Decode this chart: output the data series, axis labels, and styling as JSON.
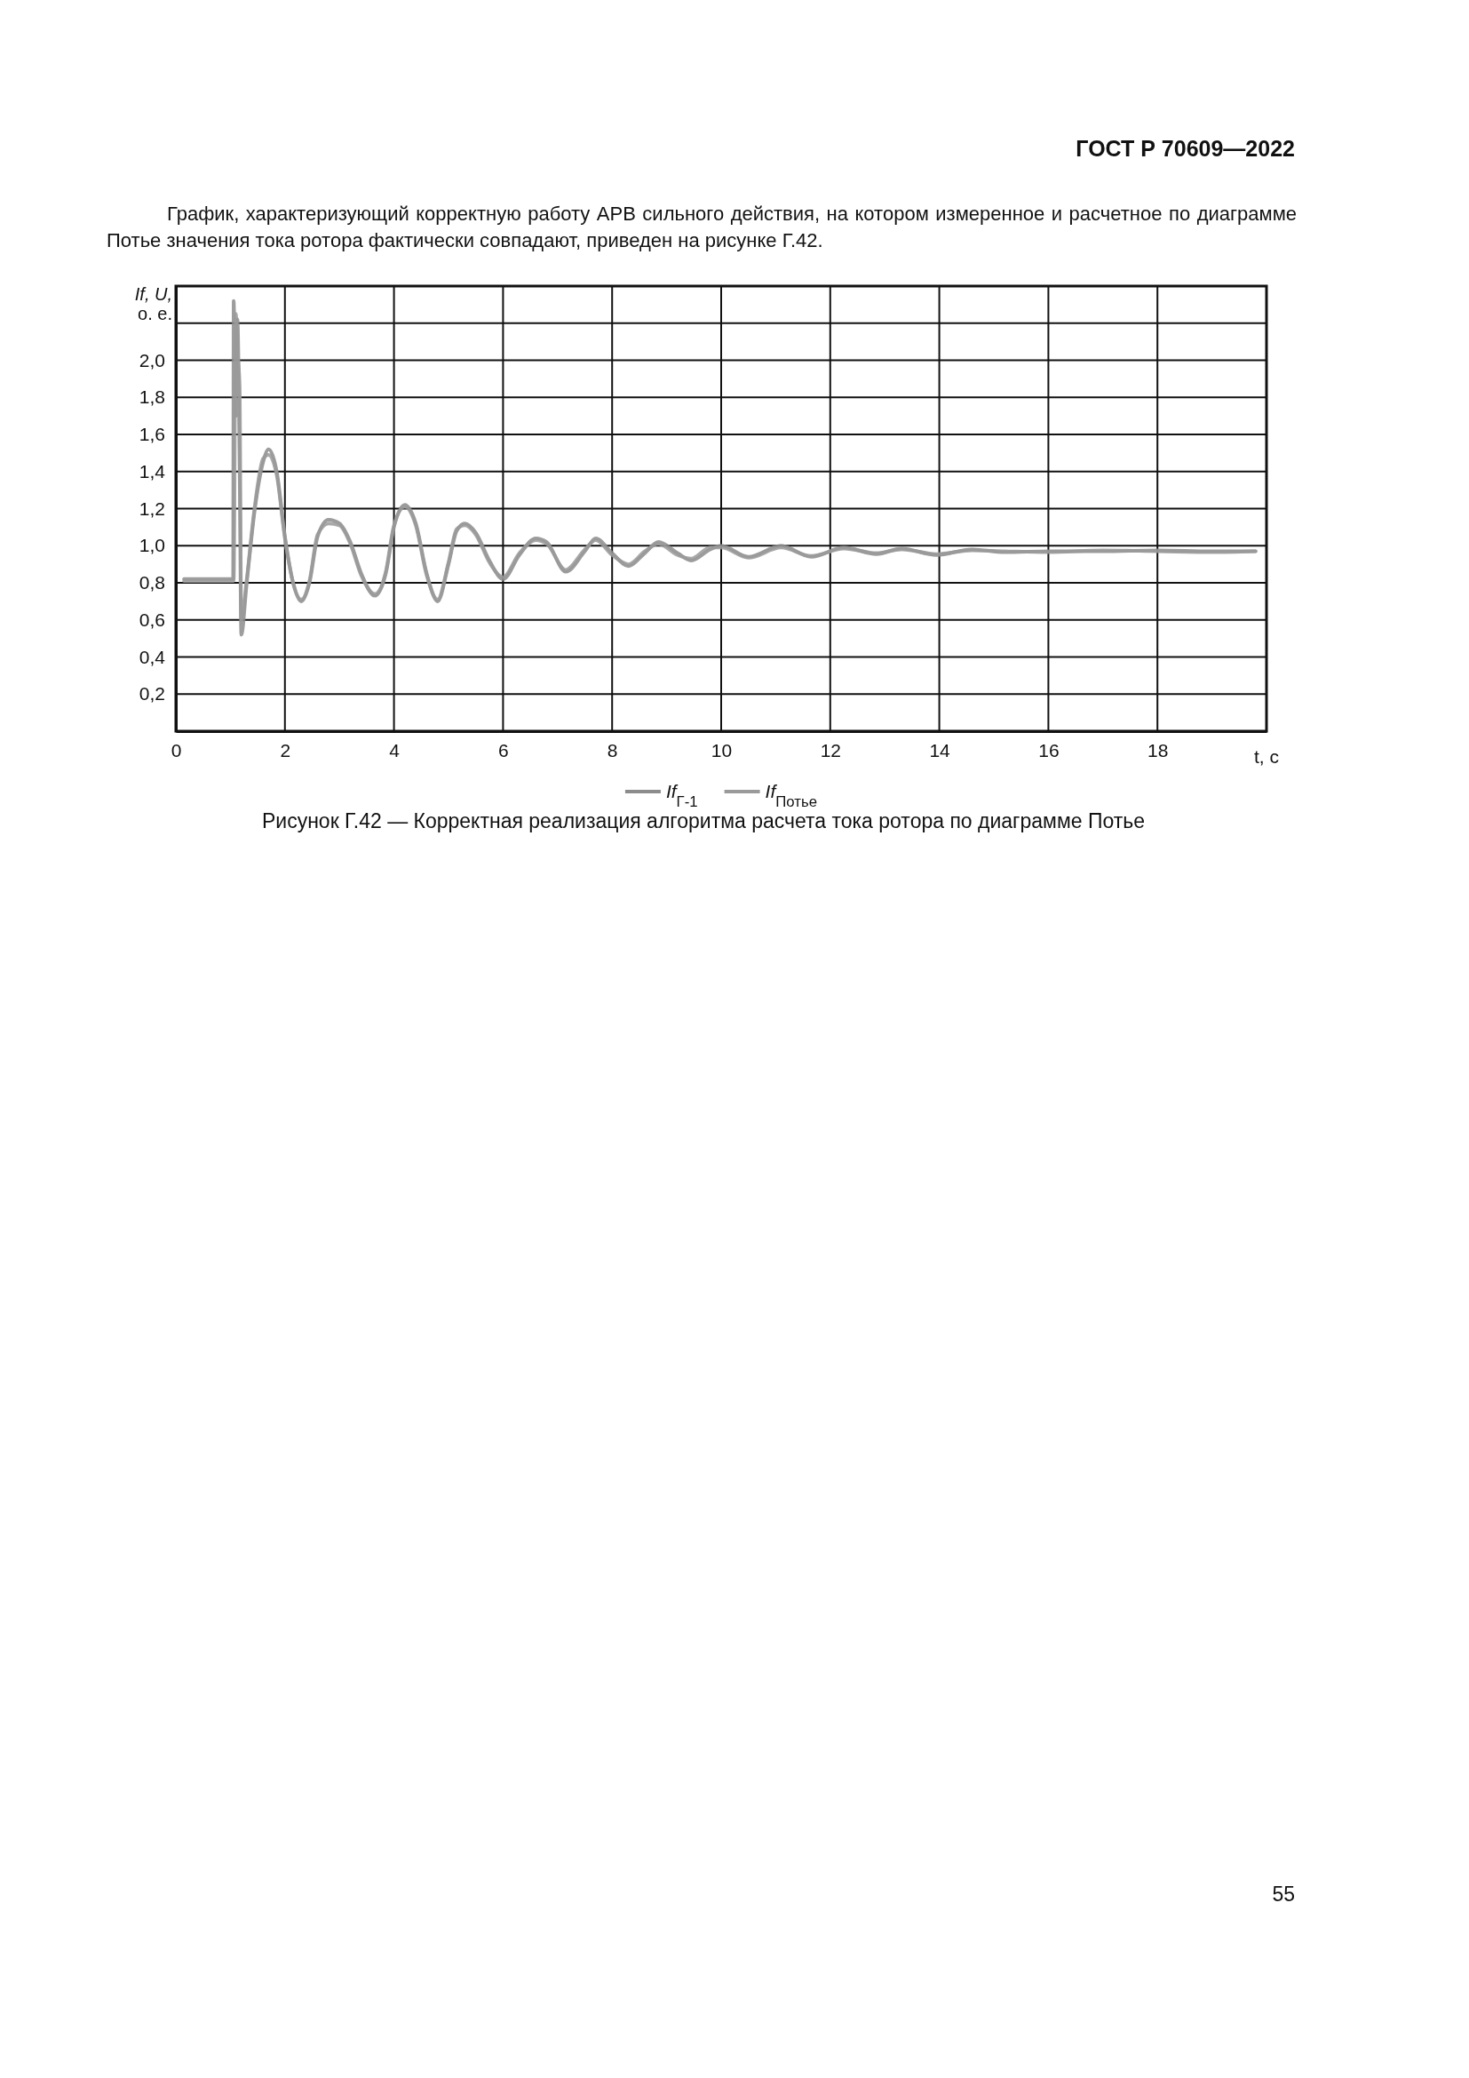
{
  "chart_data": {
    "type": "line",
    "title": "Рисунок Г.42 — Корректная реализация алгоритма расчета тока ротора по диаграмме Потье",
    "xlabel": "t, с",
    "ylabel": "If, U, о. е.",
    "annotations": [
      "ГОСТ Р 70609—2022",
      "График, характеризующий корректную работу АРВ сильного действия, на котором измеренное и расчетное по диаграмме Потье значения тока ротора фактически совпадают, приведен на рисунке Г.42.",
      "55"
    ],
    "x": [
      0.15,
      0.6,
      1.05,
      1.06,
      1.1,
      1.13,
      1.17,
      1.2,
      1.3,
      1.45,
      1.6,
      1.7,
      1.85,
      2.0,
      2.15,
      2.3,
      2.45,
      2.6,
      2.8,
      3.0,
      3.2,
      3.4,
      3.65,
      3.85,
      4.0,
      4.2,
      4.4,
      4.6,
      4.8,
      5.0,
      5.15,
      5.3,
      5.5,
      5.75,
      6.0,
      6.3,
      6.6,
      6.8,
      7.15,
      7.5,
      7.7,
      8.0,
      8.3,
      8.6,
      8.85,
      9.2,
      9.45,
      9.8,
      10.0,
      10.5,
      11.1,
      11.65,
      12.25,
      12.85,
      13.3,
      13.95,
      14.6,
      15.2,
      16.0,
      17.0,
      18.0,
      19.0,
      19.8
    ],
    "series": [
      {
        "name": "If$_{Г-1}$",
        "color": "#8c8c8c",
        "values": [
          0.82,
          0.82,
          0.82,
          2.32,
          1.7,
          2.22,
          1.4,
          0.52,
          0.8,
          1.2,
          1.45,
          1.52,
          1.4,
          1.05,
          0.8,
          0.7,
          0.8,
          1.05,
          1.14,
          1.12,
          1.02,
          0.85,
          0.73,
          0.85,
          1.1,
          1.22,
          1.12,
          0.85,
          0.7,
          0.9,
          1.08,
          1.12,
          1.07,
          0.92,
          0.82,
          0.95,
          1.04,
          1.02,
          0.86,
          0.97,
          1.04,
          0.96,
          0.89,
          0.96,
          1.02,
          0.96,
          0.92,
          0.98,
          1.0,
          0.94,
          1.0,
          0.94,
          0.99,
          0.955,
          0.985,
          0.95,
          0.98,
          0.965,
          0.97,
          0.97,
          0.975,
          0.97,
          0.97
        ]
      },
      {
        "name": "If$_{Потье}$",
        "color": "#9a9a9a",
        "values": [
          0.81,
          0.81,
          0.81,
          0.81,
          2.25,
          2.05,
          1.86,
          0.6,
          0.82,
          1.22,
          1.47,
          1.49,
          1.38,
          1.04,
          0.8,
          0.71,
          0.81,
          1.06,
          1.12,
          1.11,
          1.01,
          0.84,
          0.74,
          0.86,
          1.11,
          1.21,
          1.11,
          0.84,
          0.71,
          0.91,
          1.09,
          1.11,
          1.06,
          0.91,
          0.83,
          0.96,
          1.03,
          1.01,
          0.87,
          0.98,
          1.03,
          0.95,
          0.9,
          0.97,
          1.01,
          0.95,
          0.93,
          0.99,
          0.99,
          0.935,
          0.99,
          0.945,
          0.985,
          0.96,
          0.98,
          0.955,
          0.975,
          0.97,
          0.965,
          0.975,
          0.97,
          0.965,
          0.97
        ]
      }
    ],
    "xlim": [
      0,
      20
    ],
    "xticks": [
      0,
      2,
      4,
      6,
      8,
      10,
      12,
      14,
      16,
      18
    ],
    "ylim": [
      0,
      2.4
    ],
    "yticks": [
      {
        "value": 0.2,
        "label": "0,2"
      },
      {
        "value": 0.4,
        "label": "0,4"
      },
      {
        "value": 0.6,
        "label": "0,6"
      },
      {
        "value": 0.8,
        "label": "0,8"
      },
      {
        "value": 1.0,
        "label": "1,0"
      },
      {
        "value": 1.2,
        "label": "1,2"
      },
      {
        "value": 1.4,
        "label": "1,4"
      },
      {
        "value": 1.6,
        "label": "1,6"
      },
      {
        "value": 1.8,
        "label": "1,8"
      },
      {
        "value": 2.0,
        "label": "2,0"
      },
      {
        "value": 2.2,
        "label": null
      }
    ],
    "grid": true,
    "legend": "bottom",
    "line_style": "solid",
    "marker": "none"
  }
}
